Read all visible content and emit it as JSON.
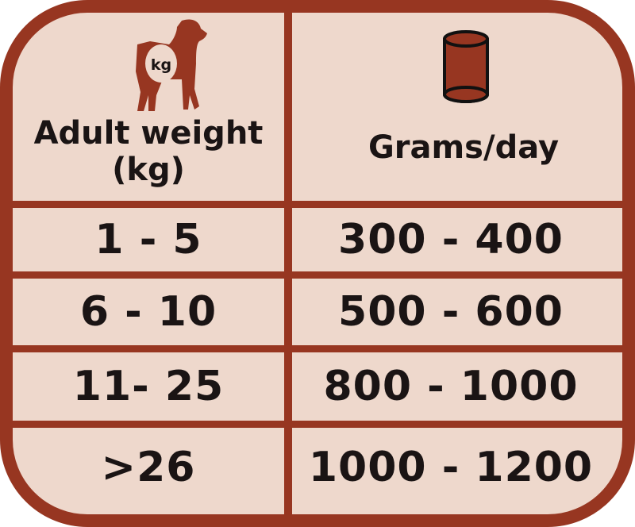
{
  "colors": {
    "border": "#973621",
    "background": "#EED8CC",
    "text": "#1a1414"
  },
  "header": {
    "weight_label": "Adult weight (kg)",
    "weight_icon": "dog-weight-icon",
    "weight_icon_text": "kg",
    "grams_label": "Grams/day",
    "grams_icon": "food-can-icon"
  },
  "rows": [
    {
      "weight": "1 - 5",
      "grams": "300 - 400"
    },
    {
      "weight": "6 - 10",
      "grams": "500 - 600"
    },
    {
      "weight": "11- 25",
      "grams": "800 - 1000"
    },
    {
      "weight": ">26",
      "grams": "1000 - 1200"
    }
  ]
}
